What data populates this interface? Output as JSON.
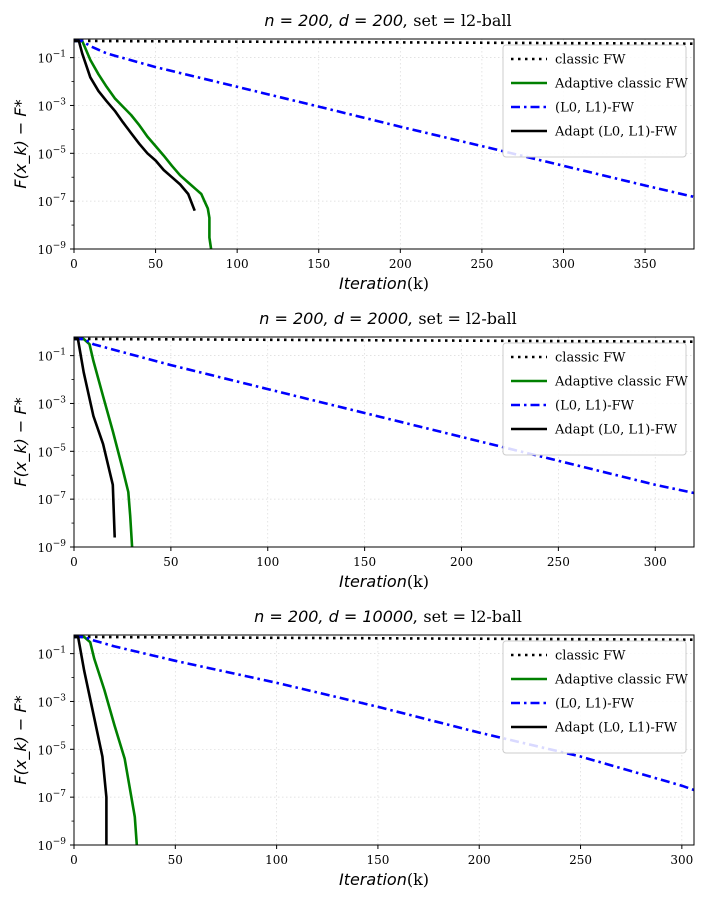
{
  "chart_data": [
    {
      "type": "line",
      "title_math": "n = 200, d = 200,",
      "title_text": "set = l2-ball",
      "xlabel_math": "Iteration",
      "xlabel_text": "(k)",
      "ylabel": "F(x_k) − F*",
      "yscale": "log",
      "xlim": [
        0,
        380
      ],
      "ylim": [
        1e-09,
        0.6
      ],
      "xticks": [
        0,
        50,
        100,
        150,
        200,
        250,
        300,
        350
      ],
      "yticks": [
        -9,
        -7,
        -5,
        -3,
        -1
      ],
      "grid": true,
      "legend_position": "upper-right",
      "series": [
        {
          "name": "classic FW",
          "style": "dotted",
          "color": "#000000",
          "x": [
            0,
            380
          ],
          "y": [
            0.5,
            0.38
          ]
        },
        {
          "name": "Adaptive classic FW",
          "style": "solid",
          "color": "#008000",
          "x": [
            0,
            5,
            10,
            15,
            20,
            25,
            30,
            35,
            40,
            45,
            50,
            55,
            60,
            65,
            70,
            75,
            78,
            80,
            82,
            83,
            83,
            84
          ],
          "y": [
            0.5,
            0.5,
            0.08,
            0.02,
            0.006,
            0.002,
            0.0009,
            0.0004,
            0.00015,
            5e-05,
            2e-05,
            8e-06,
            3e-06,
            1.2e-06,
            6e-07,
            3e-07,
            2e-07,
            1e-07,
            5e-08,
            2e-08,
            3e-09,
            1e-09
          ]
        },
        {
          "name": "(L0, L1)-FW",
          "style": "dashdot",
          "color": "#0000ff",
          "x": [
            0,
            5,
            10,
            20,
            50,
            100,
            150,
            200,
            250,
            300,
            350,
            380
          ],
          "y": [
            0.5,
            0.5,
            0.3,
            0.15,
            0.04,
            0.006,
            0.0009,
            0.00013,
            2e-05,
            3e-06,
            4.5e-07,
            1.5e-07
          ]
        },
        {
          "name": "Adapt (L0, L1)-FW",
          "style": "solid",
          "color": "#000000",
          "x": [
            0,
            3,
            5,
            10,
            15,
            20,
            25,
            30,
            35,
            40,
            45,
            50,
            55,
            60,
            65,
            70,
            74
          ],
          "y": [
            0.5,
            0.5,
            0.15,
            0.015,
            0.004,
            0.0015,
            0.0006,
            0.0002,
            7e-05,
            2.5e-05,
            1e-05,
            5e-06,
            2e-06,
            1e-06,
            5e-07,
            2e-07,
            4e-08
          ]
        }
      ]
    },
    {
      "type": "line",
      "title_math": "n = 200, d = 2000,",
      "title_text": "set = l2-ball",
      "xlabel_math": "Iteration",
      "xlabel_text": "(k)",
      "ylabel": "F(x_k) − F*",
      "yscale": "log",
      "xlim": [
        0,
        320
      ],
      "ylim": [
        1e-09,
        0.6
      ],
      "xticks": [
        0,
        50,
        100,
        150,
        200,
        250,
        300
      ],
      "yticks": [
        -9,
        -7,
        -5,
        -3,
        -1
      ],
      "grid": true,
      "legend_position": "upper-right",
      "series": [
        {
          "name": "classic FW",
          "style": "dotted",
          "color": "#000000",
          "x": [
            0,
            320
          ],
          "y": [
            0.5,
            0.38
          ]
        },
        {
          "name": "Adaptive classic FW",
          "style": "solid",
          "color": "#008000",
          "x": [
            0,
            5,
            8,
            10,
            15,
            20,
            25,
            28,
            29,
            30
          ],
          "y": [
            0.5,
            0.5,
            0.3,
            0.06,
            0.002,
            7e-05,
            2e-06,
            2e-07,
            2e-08,
            1e-09
          ]
        },
        {
          "name": "(L0, L1)-FW",
          "style": "dashdot",
          "color": "#0000ff",
          "x": [
            0,
            5,
            10,
            20,
            50,
            100,
            150,
            200,
            250,
            300,
            320
          ],
          "y": [
            0.5,
            0.5,
            0.3,
            0.18,
            0.04,
            0.004,
            0.0004,
            4e-05,
            4e-06,
            4e-07,
            1.8e-07
          ]
        },
        {
          "name": "Adapt (L0, L1)-FW",
          "style": "solid",
          "color": "#000000",
          "x": [
            0,
            2,
            5,
            10,
            15,
            20,
            21
          ],
          "y": [
            0.5,
            0.5,
            0.02,
            0.0003,
            2e-05,
            4e-07,
            2.5e-09
          ]
        }
      ]
    },
    {
      "type": "line",
      "title_math": "n = 200, d = 10000,",
      "title_text": "set = l2-ball",
      "xlabel_math": "Iteration",
      "xlabel_text": "(k)",
      "ylabel": "F(x_k) − F*",
      "yscale": "log",
      "xlim": [
        0,
        306
      ],
      "ylim": [
        1e-09,
        0.6
      ],
      "xticks": [
        0,
        50,
        100,
        150,
        200,
        250,
        300
      ],
      "yticks": [
        -9,
        -7,
        -5,
        -3,
        -1
      ],
      "grid": true,
      "legend_position": "upper-right",
      "series": [
        {
          "name": "classic FW",
          "style": "dotted",
          "color": "#000000",
          "x": [
            0,
            306
          ],
          "y": [
            0.5,
            0.38
          ]
        },
        {
          "name": "Adaptive classic FW",
          "style": "solid",
          "color": "#008000",
          "x": [
            0,
            5,
            8,
            10,
            15,
            20,
            25,
            30,
            31
          ],
          "y": [
            0.5,
            0.5,
            0.3,
            0.06,
            0.003,
            0.0001,
            4e-06,
            1.5e-08,
            1e-09
          ]
        },
        {
          "name": "(L0, L1)-FW",
          "style": "dashdot",
          "color": "#0000ff",
          "x": [
            0,
            5,
            10,
            20,
            50,
            100,
            150,
            200,
            250,
            300,
            306
          ],
          "y": [
            0.5,
            0.5,
            0.35,
            0.2,
            0.05,
            0.006,
            0.0006,
            5e-05,
            5e-06,
            3e-07,
            2e-07
          ]
        },
        {
          "name": "Adapt (L0, L1)-FW",
          "style": "solid",
          "color": "#000000",
          "x": [
            0,
            2,
            5,
            10,
            14,
            16,
            16
          ],
          "y": [
            0.5,
            0.5,
            0.02,
            0.0002,
            5e-06,
            1e-07,
            1e-09
          ]
        }
      ]
    }
  ]
}
